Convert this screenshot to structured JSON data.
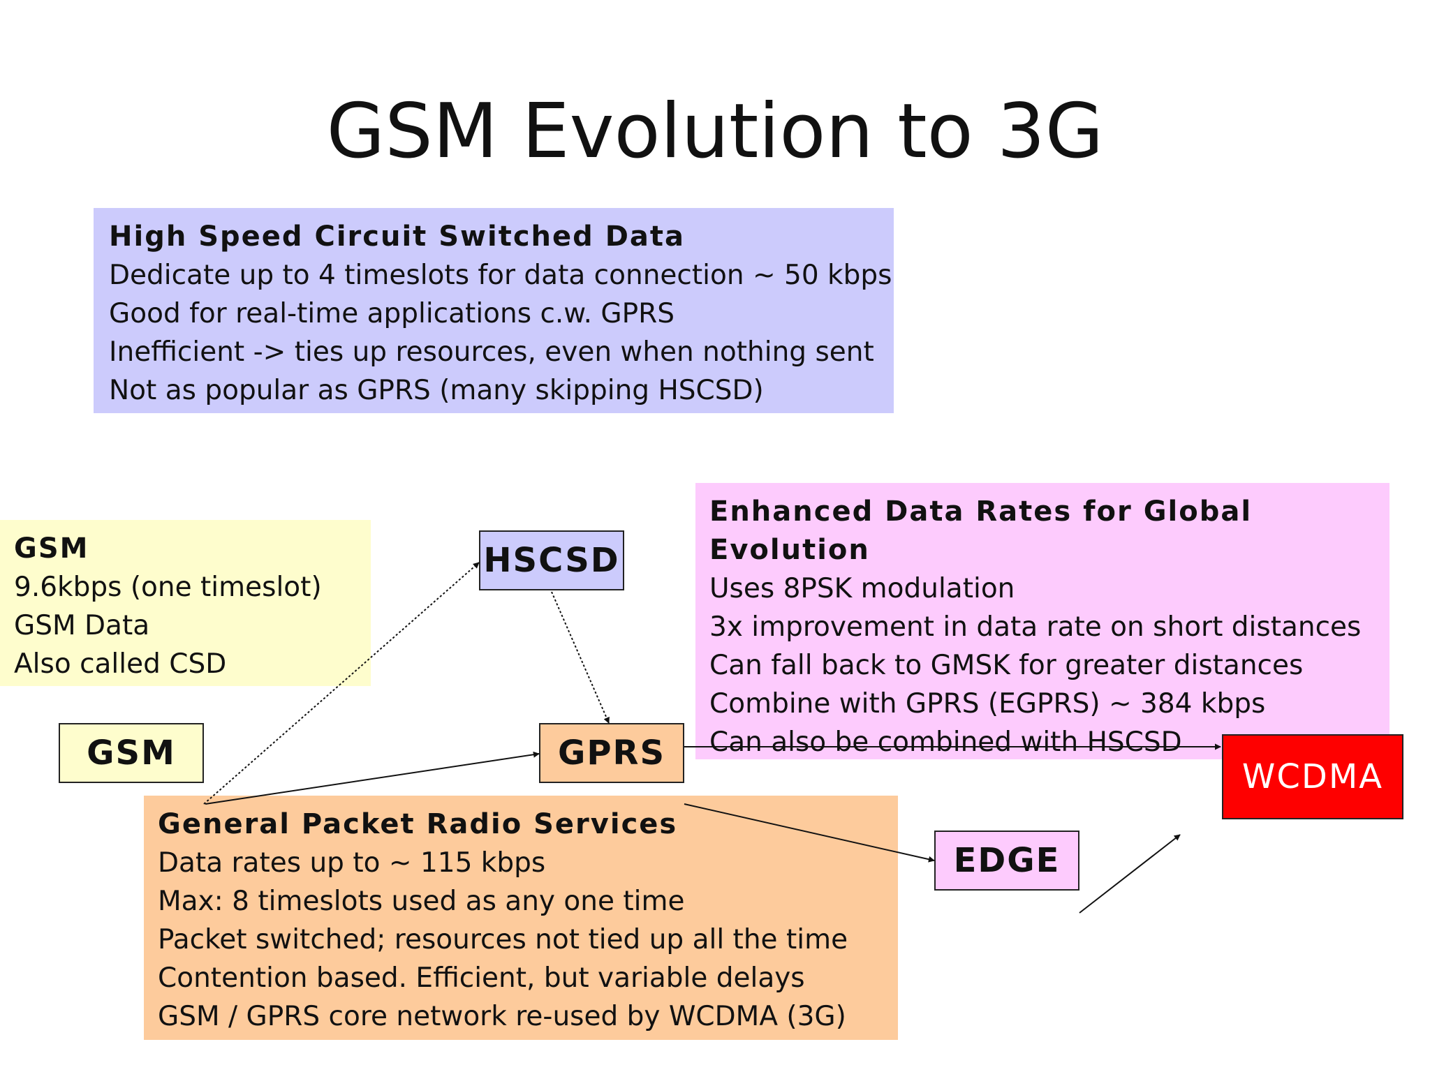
{
  "title": "GSM Evolution to 3G",
  "panels": {
    "hscsd": {
      "heading": "High Speed Circuit Switched Data",
      "lines": [
        "Dedicate up to 4 timeslots for data connection ~ 50 kbps",
        "Good for real-time applications c.w. GPRS",
        "Inefficient -> ties up resources, even when nothing sent",
        "Not as popular as GPRS (many skipping HSCSD)"
      ],
      "color": "#cccbfc"
    },
    "gsm": {
      "heading": "GSM",
      "lines": [
        "9.6kbps (one timeslot)",
        "GSM Data",
        "Also called CSD"
      ],
      "color": "#fefdcd"
    },
    "edge": {
      "heading_lines": [
        "Enhanced Data Rates for Global",
        "Evolution"
      ],
      "lines": [
        "Uses 8PSK modulation",
        "3x improvement in data rate on short distances",
        "Can fall back to GMSK for greater distances",
        "Combine with GPRS (EGPRS) ~ 384 kbps",
        "Can also be combined with HSCSD"
      ],
      "color": "#fdcbfd"
    },
    "gprs": {
      "heading": "General Packet Radio Services",
      "lines": [
        "Data rates up to ~ 115 kbps",
        "Max: 8 timeslots used as any one time",
        "Packet switched; resources not tied up all the time",
        "Contention based.  Efficient, but variable delays",
        "GSM / GPRS core network re-used by WCDMA (3G)"
      ],
      "color": "#fdcb9c"
    }
  },
  "nodes": {
    "gsm": {
      "label": "GSM",
      "color": "#fefdcd"
    },
    "hscsd": {
      "label": "HSCSD",
      "color": "#cccbfc"
    },
    "gprs": {
      "label": "GPRS",
      "color": "#fdcb9c"
    },
    "edge": {
      "label": "EDGE",
      "color": "#fdcbfd"
    },
    "wcdma": {
      "label": "WCDMA",
      "color": "#fe0000",
      "text_color": "#ffffff"
    }
  }
}
